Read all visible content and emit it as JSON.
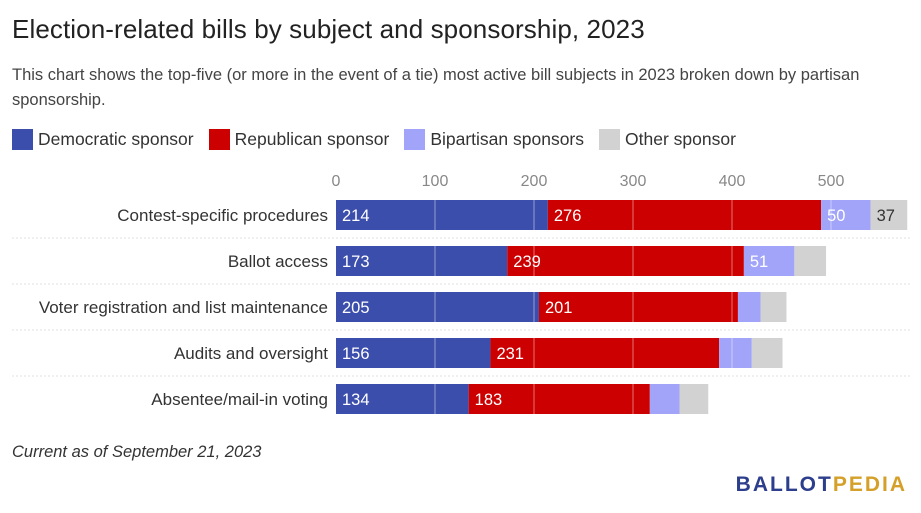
{
  "title": "Election-related bills by subject and sponsorship, 2023",
  "subtitle": "This chart shows the top-five (or more in the event of a tie) most active bill subjects in 2023 broken down by partisan sponsorship.",
  "footnote": "Current as of September 21, 2023",
  "logo": {
    "part1": "BALLOT",
    "part2": "PEDIA"
  },
  "colors": {
    "democratic": "#3b4eab",
    "republican": "#cc0000",
    "bipartisan": "#a1a4f8",
    "other": "#d2d2d2"
  },
  "chart_data": {
    "type": "bar",
    "orientation": "horizontal",
    "stacked": true,
    "categories": [
      "Contest-specific procedures",
      "Ballot access",
      "Voter registration and list maintenance",
      "Audits and oversight",
      "Absentee/mail-in voting"
    ],
    "series": [
      {
        "name": "Democratic sponsor",
        "values": [
          214,
          173,
          205,
          156,
          134
        ]
      },
      {
        "name": "Republican sponsor",
        "values": [
          276,
          239,
          201,
          231,
          183
        ]
      },
      {
        "name": "Bipartisan sponsors",
        "values": [
          50,
          51,
          23,
          33,
          30
        ]
      },
      {
        "name": "Other sponsor",
        "values": [
          37,
          32,
          26,
          31,
          29
        ]
      }
    ],
    "data_labels": [
      [
        "214",
        "276",
        "50",
        "37"
      ],
      [
        "173",
        "239",
        "51",
        ""
      ],
      [
        "205",
        "201",
        "",
        ""
      ],
      [
        "156",
        "231",
        "",
        ""
      ],
      [
        "134",
        "183",
        "",
        ""
      ]
    ],
    "x_ticks": [
      0,
      100,
      200,
      300,
      400,
      500
    ],
    "xlim": [
      0,
      578
    ],
    "grid": true,
    "legend_position": "top"
  }
}
